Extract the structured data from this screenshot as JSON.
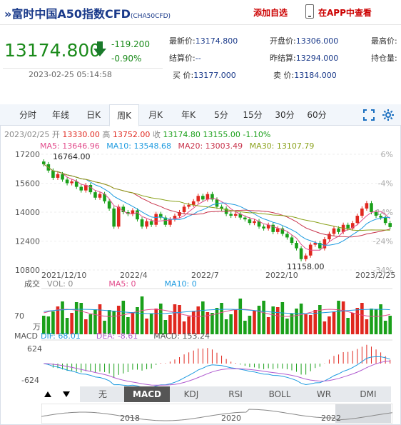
{
  "header": {
    "marker": "»",
    "title": "富时中国A50指数CFD",
    "code": "(CHA50CFD)",
    "watch": "添加自选",
    "app": "在APP中查看"
  },
  "quote": {
    "price": "13174.800",
    "change": "-119.200",
    "change_pct": "-0.90%",
    "datetime": "2023-02-25 05:14:58",
    "fields": [
      {
        "label": "最新价:",
        "value": "13174.800"
      },
      {
        "label": "开盘价:",
        "value": "13306.000"
      },
      {
        "label": "最高价:",
        "value": ""
      },
      {
        "label": "结算价:",
        "value": "--"
      },
      {
        "label": "昨结算:",
        "value": "13294.000"
      },
      {
        "label": "持仓量:",
        "value": ""
      },
      {
        "label": "买  价:",
        "value": "13177.000"
      },
      {
        "label": "卖  价:",
        "value": "13184.000"
      }
    ]
  },
  "tabs": [
    "分时",
    "年线",
    "日K",
    "周K",
    "月K",
    "年K",
    "5分",
    "15分",
    "30分",
    "60分"
  ],
  "active_tab": "周K",
  "ohlc": {
    "date": "2023/02/25",
    "open_label": "开",
    "open": "13330.00",
    "high_label": "高",
    "high": "13752.00",
    "close_label": "收",
    "close": "13174.80",
    "low": "13155.00",
    "pct": "-1.10%"
  },
  "ma": [
    {
      "label": "MA5:",
      "value": "13646.96",
      "color": "#e24c8c"
    },
    {
      "label": "MA10:",
      "value": "13548.68",
      "color": "#1e9be0"
    },
    {
      "label": "MA20:",
      "value": "13003.49",
      "color": "#c8334b"
    },
    {
      "label": "MA30:",
      "value": "13107.79",
      "color": "#8aa11a"
    }
  ],
  "vol_legend": {
    "label": "成交",
    "vol": "VOL: 0",
    "ma5": "MA5: 0",
    "ma10": "MA10: 0",
    "unit": "万",
    "tick": "70"
  },
  "macd_legend": {
    "label": "MACD",
    "dif": "DIF: 68.01",
    "dea": "DEA: -8.61",
    "macd": "MACD: 153.24",
    "top": "624",
    "bottom": "-624"
  },
  "chart_data": {
    "type": "candlestick",
    "y_ticks": [
      "17200",
      "15600",
      "14000",
      "12400",
      "10800"
    ],
    "pct_ticks": [
      "6%",
      "-4%",
      "-14%",
      "-24%",
      "-34%"
    ],
    "x_ticks": [
      "2021/12/10",
      "2022/4",
      "2022/7",
      "2022/10",
      "2023/2/25"
    ],
    "annotations": {
      "high": "16764.00",
      "low": "11158.00"
    },
    "ylim": [
      10800,
      17200
    ],
    "closes": [
      16650,
      16300,
      15900,
      16100,
      15800,
      15600,
      15700,
      15400,
      15200,
      15500,
      15100,
      14800,
      15000,
      14600,
      14200,
      13200,
      14300,
      14000,
      13900,
      14100,
      13600,
      13200,
      13500,
      13300,
      13900,
      13700,
      13300,
      13600,
      13800,
      14000,
      14300,
      14400,
      14600,
      14900,
      14700,
      15000,
      14700,
      14300,
      14200,
      13900,
      13800,
      13900,
      13700,
      13600,
      13400,
      13500,
      13200,
      13100,
      13300,
      12900,
      13100,
      12800,
      12600,
      12300,
      12000,
      11400,
      11600,
      12200,
      12300,
      12000,
      12500,
      12800,
      13100,
      12900,
      13300,
      13100,
      13400,
      13800,
      14200,
      14500,
      14000,
      13800,
      13700,
      13400,
      13174.8
    ],
    "nav_ticks": [
      "2018",
      "2020",
      "2022"
    ]
  },
  "indicators": [
    "无",
    "MACD",
    "KDJ",
    "RSI",
    "BOLL",
    "WR",
    "DMI"
  ],
  "active_indicator": "MACD",
  "colors": {
    "up": "#e0281f",
    "down": "#1aa01a",
    "accent": "#1a3a8a"
  }
}
